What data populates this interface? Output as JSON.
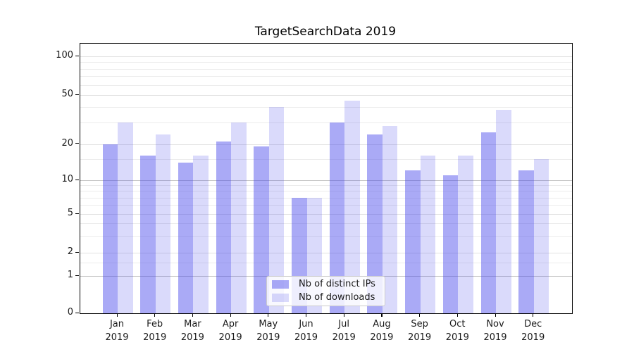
{
  "title": "TargetSearchData 2019",
  "chart_data": {
    "type": "bar",
    "title": "TargetSearchData 2019",
    "categories": [
      "Jan 2019",
      "Feb 2019",
      "Mar 2019",
      "Apr 2019",
      "May 2019",
      "Jun 2019",
      "Jul 2019",
      "Aug 2019",
      "Sep 2019",
      "Oct 2019",
      "Nov 2019",
      "Dec 2019"
    ],
    "series": [
      {
        "name": "Nb of distinct IPs",
        "values": [
          20,
          16,
          14,
          21,
          19,
          7,
          30,
          24,
          12,
          11,
          25,
          12
        ]
      },
      {
        "name": "Nb of downloads",
        "values": [
          30,
          24,
          16,
          30,
          40,
          7,
          45,
          28,
          16,
          16,
          38,
          15
        ]
      }
    ],
    "xlabel": "",
    "ylabel": "",
    "yscale": "symlog",
    "y_ticks": [
      0,
      1,
      2,
      5,
      10,
      20,
      50,
      100
    ],
    "y_minor_ticks": [
      1.5,
      3,
      4,
      6,
      7,
      8,
      9,
      15,
      30,
      40,
      60,
      70,
      80,
      90
    ],
    "ylim": [
      0,
      130
    ],
    "grid": true,
    "legend_position": "lower center"
  },
  "colors": {
    "bar_ips": "rgba(70,70,235,0.46)",
    "bar_downloads": "rgba(70,70,235,0.20)",
    "bar_base_hex": "#4646eb",
    "grid_major": "#c4c4c4",
    "grid_mid": "#e2e2e2",
    "grid_minor": "#ececec",
    "spine": "#000000",
    "text": "#1a1a1a",
    "legend_border": "#cccccc"
  }
}
